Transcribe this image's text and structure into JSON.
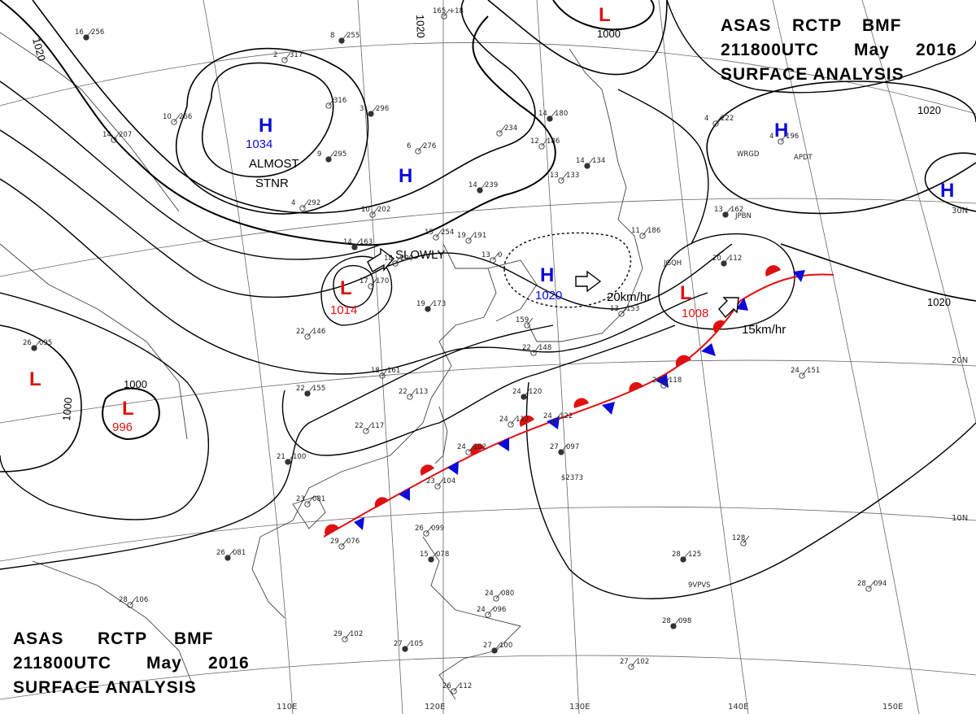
{
  "header_top": {
    "line1_a": "ASAS",
    "line1_b": "RCTP",
    "line1_c": "BMF",
    "line2_a": "211800UTC",
    "line2_b": "May",
    "line2_c": "2016",
    "line3": "SURFACE ANALYSIS"
  },
  "header_bottom": {
    "line1_a": "ASAS",
    "line1_b": "RCTP",
    "line1_c": "BMF",
    "line2_a": "211800UTC",
    "line2_b": "May",
    "line2_c": "2016",
    "line3": "SURFACE ANALYSIS"
  },
  "colors": {
    "high": "#0a0adc",
    "low": "#e01010",
    "isobar": "#000000",
    "cold_front": "#0a0adc",
    "warm_front": "#e01010"
  },
  "pressure_systems": {
    "high_mongolia": {
      "symbol": "H",
      "value": "1034"
    },
    "high_north_china": {
      "symbol": "H",
      "value": ""
    },
    "high_sea": {
      "symbol": "H",
      "value": "1020"
    },
    "high_pacific_1": {
      "symbol": "H",
      "value": ""
    },
    "high_pacific_2": {
      "symbol": "H",
      "value": ""
    },
    "low_top": {
      "symbol": "L",
      "value": ""
    },
    "low_sichuan": {
      "symbol": "L",
      "value": "1014"
    },
    "low_west": {
      "symbol": "L",
      "value": ""
    },
    "low_bay": {
      "symbol": "L",
      "value": "996"
    },
    "low_japan": {
      "symbol": "L",
      "value": "1008"
    }
  },
  "annotations": {
    "almost": "ALMOST",
    "stnr": "STNR",
    "slowly": "SLOWLY",
    "speed_high": "20km/hr",
    "speed_low": "15km/hr"
  },
  "isobar_labels": {
    "nw": "1020",
    "top": "1020",
    "top_low": "1000",
    "east": "1020",
    "east_low": "1020",
    "bay_outer": "1000",
    "bay_inner": "1000"
  },
  "grid_labels": {
    "lat_30": "30N",
    "lat_20": "20N",
    "lat_10": "10N",
    "lon_110": "110E",
    "lon_120": "120E",
    "lon_130": "130E",
    "lon_140": "140E",
    "lon_150": "150E"
  },
  "stations": [
    {
      "t": "16",
      "p": "256"
    },
    {
      "t": "10",
      "p": "266"
    },
    {
      "t": "14",
      "p": "207"
    },
    {
      "t": "8",
      "p": "255"
    },
    {
      "t": "2",
      "p": "317"
    },
    {
      "t": "",
      "p": "316"
    },
    {
      "t": "3",
      "p": "296"
    },
    {
      "t": "",
      "p": "234"
    },
    {
      "t": "6",
      "p": "276"
    },
    {
      "t": "9",
      "p": "295"
    },
    {
      "t": "4",
      "p": "292"
    },
    {
      "t": "10",
      "p": "202"
    },
    {
      "t": "14",
      "p": "239"
    },
    {
      "t": "15",
      "p": "254"
    },
    {
      "t": "19",
      "p": "191"
    },
    {
      "t": "14",
      "p": "163"
    },
    {
      "t": "17",
      "p": "170"
    },
    {
      "t": "18",
      "p": "200"
    },
    {
      "t": "19",
      "p": "173"
    },
    {
      "t": "22",
      "p": "146"
    },
    {
      "t": "18",
      "p": "161"
    },
    {
      "t": "22",
      "p": "155"
    },
    {
      "t": "22",
      "p": "113"
    },
    {
      "t": "22",
      "p": "117"
    },
    {
      "t": "21",
      "p": "100"
    },
    {
      "t": "23",
      "p": "081"
    },
    {
      "t": "29",
      "p": "076"
    },
    {
      "t": "26",
      "p": "081"
    },
    {
      "t": "28",
      "p": "106"
    },
    {
      "t": "29",
      "p": "102"
    },
    {
      "t": "27",
      "p": "105"
    },
    {
      "t": "26",
      "p": "112"
    },
    {
      "t": "26",
      "p": "099"
    },
    {
      "t": "15",
      "p": "078"
    },
    {
      "t": "24",
      "p": "080"
    },
    {
      "t": "24",
      "p": "096"
    },
    {
      "t": "27",
      "p": "100"
    },
    {
      "t": "24",
      "p": "102"
    },
    {
      "t": "23",
      "p": "104"
    },
    {
      "t": "24",
      "p": "120"
    },
    {
      "t": "24",
      "p": "112"
    },
    {
      "t": "24",
      "p": "122"
    },
    {
      "t": "27",
      "p": "097"
    },
    {
      "t": "22",
      "p": "148"
    },
    {
      "t": "159",
      "p": ""
    },
    {
      "t": "14",
      "p": "180"
    },
    {
      "t": "12",
      "p": "186"
    },
    {
      "t": "13",
      "p": "133"
    },
    {
      "t": "14",
      "p": "134"
    },
    {
      "t": "13",
      "p": "153"
    },
    {
      "t": "11",
      "p": "186"
    },
    {
      "t": "13",
      "p": "162"
    },
    {
      "t": "4",
      "p": "222"
    },
    {
      "t": "4",
      "p": "196"
    },
    {
      "t": "20",
      "p": "112"
    },
    {
      "t": "24",
      "p": "118"
    },
    {
      "t": "24",
      "p": "151"
    },
    {
      "t": "28",
      "p": "125"
    },
    {
      "t": "128",
      "p": ""
    },
    {
      "t": "28",
      "p": "094"
    },
    {
      "t": "28",
      "p": "098"
    },
    {
      "t": "27",
      "p": "102"
    },
    {
      "t": "165",
      "p": "+18"
    },
    {
      "t": "26",
      "p": "095"
    },
    {
      "t": "13",
      "p": "0"
    }
  ],
  "station_ids": {
    "wrgd": "WRGD",
    "jpbn": "JPBN",
    "jgqh": "JGQH",
    "apdt": "APDT",
    "vpvs": "9VPVS",
    "s2373": "$2373"
  }
}
